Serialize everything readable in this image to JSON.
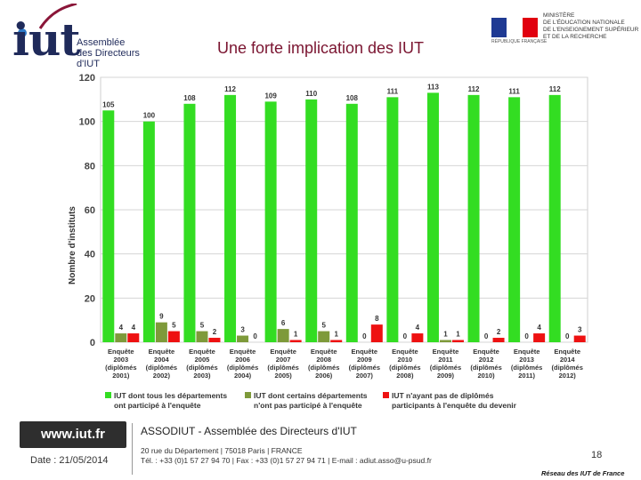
{
  "header": {
    "logo_text": "iut",
    "logo_sub": [
      "Assemblée",
      "des Directeurs",
      "d'IUT"
    ],
    "title": "Une forte implication des IUT",
    "ministry_lines": [
      "MINISTÈRE",
      "DE L'ÉDUCATION NATIONALE",
      "DE L'ENSEIGNEMENT SUPÉRIEUR",
      "ET DE LA RECHERCHE"
    ],
    "ministry_sub": "RÉPUBLIQUE FRANÇAISE",
    "flag_colors": [
      "#1f3a93",
      "#ffffff",
      "#e1000f"
    ]
  },
  "chart_data": {
    "type": "bar",
    "title": "",
    "ylabel": "Nombre d'instituts",
    "xlabel": "",
    "ylim": [
      0,
      120
    ],
    "yticks": [
      0,
      20,
      40,
      60,
      80,
      100,
      120
    ],
    "grid": true,
    "categories": [
      [
        "Enquête",
        "2003",
        "(diplômés",
        "2001)"
      ],
      [
        "Enquête",
        "2004",
        "(diplômés",
        "2002)"
      ],
      [
        "Enquête",
        "2005",
        "(diplômés",
        "2003)"
      ],
      [
        "Enquête",
        "2006",
        "(diplômés",
        "2004)"
      ],
      [
        "Enquête",
        "2007",
        "(diplômés",
        "2005)"
      ],
      [
        "Enquête",
        "2008",
        "(diplômés",
        "2006)"
      ],
      [
        "Enquête",
        "2009",
        "(diplômés",
        "2007)"
      ],
      [
        "Enquête",
        "2010",
        "(diplômés",
        "2008)"
      ],
      [
        "Enquête",
        "2011",
        "(diplômés",
        "2009)"
      ],
      [
        "Enquête",
        "2012",
        "(diplômés",
        "2010)"
      ],
      [
        "Enquête",
        "2013",
        "(diplômés",
        "2011)"
      ],
      [
        "Enquête",
        "2014",
        "(diplômés",
        "2012)"
      ]
    ],
    "series": [
      {
        "name": "IUT dont tous les départements ont participé à l'enquête",
        "color": "#33dd22",
        "values": [
          105,
          100,
          108,
          112,
          109,
          110,
          108,
          111,
          113,
          112,
          111,
          112
        ]
      },
      {
        "name": "IUT dont certains départements n'ont pas participé à l'enquête",
        "color": "#7e9a3a",
        "values": [
          4,
          9,
          5,
          3,
          6,
          5,
          0,
          0,
          1,
          0,
          0,
          0
        ]
      },
      {
        "name": "IUT n'ayant pas de diplômés participants à l'enquête du devenir",
        "color": "#ee1111",
        "values": [
          4,
          5,
          2,
          0,
          1,
          1,
          8,
          4,
          1,
          2,
          4,
          3
        ]
      }
    ],
    "legend": [
      [
        "IUT dont tous les départements",
        "ont participé à l'enquête"
      ],
      [
        "IUT dont certains départements",
        "n'ont pas participé à l'enquête"
      ],
      [
        "IUT n'ayant pas de diplômés",
        "participants à l'enquête du devenir"
      ]
    ],
    "legend_position": "bottom"
  },
  "footer": {
    "site": "www.iut.fr",
    "date": "Date : 21/05/2014",
    "assoc": "ASSODIUT - Assemblée des Directeurs d'IUT",
    "address": "20 rue du Département | 75018 Paris | FRANCE",
    "contact": "Tél. : +33 (0)1 57 27 94 70 | Fax : +33 (0)1 57 27 94 71 | E-mail : adiut.asso@u-psud.fr",
    "page": "18",
    "reseau": "Réseau des IUT de France"
  }
}
